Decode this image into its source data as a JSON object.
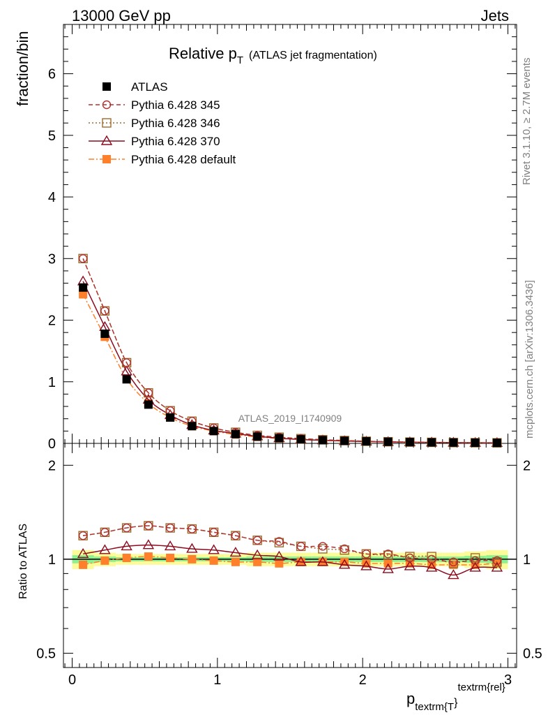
{
  "header": {
    "left": "13000 GeV pp",
    "right": "Jets"
  },
  "title": {
    "main": "Relative p",
    "sub": "T",
    "suffix": "(ATLAS jet fragmentation)"
  },
  "analysis_label": "ATLAS_2019_I1740909",
  "side_labels": {
    "rivet": "Rivet 3.1.10, ≥ 2.7M events",
    "mcplots": "mcplots.cern.ch [arXiv:1306.3436]"
  },
  "axes": {
    "ylabel_top": "fraction/bin",
    "ylabel_bottom": "Ratio to ATLAS",
    "xlabel_main": "p",
    "xlabel_sub": "textrm{T",
    "xlabel_brace": "}",
    "xlabel_sup": "textrm{rel",
    "xlabel_sup_brace": "}"
  },
  "legend": [
    {
      "name": "ATLAS",
      "color": "#000000",
      "marker": "filled-square",
      "line": "none"
    },
    {
      "name": "Pythia 6.428 345",
      "color": "#b03030",
      "marker": "open-circle",
      "line": "dashed"
    },
    {
      "name": "Pythia 6.428 346",
      "color": "#9c6b2c",
      "marker": "open-square",
      "line": "dotted"
    },
    {
      "name": "Pythia 6.428 370",
      "color": "#8b0a1e",
      "marker": "open-triangle",
      "line": "solid"
    },
    {
      "name": "Pythia 6.428 default",
      "color": "#ff7f2a",
      "marker": "filled-square",
      "line": "dashdot"
    }
  ],
  "chart_data": {
    "type": "scatter",
    "x": [
      0.075,
      0.225,
      0.375,
      0.525,
      0.675,
      0.825,
      0.975,
      1.125,
      1.275,
      1.425,
      1.575,
      1.725,
      1.875,
      2.025,
      2.175,
      2.325,
      2.475,
      2.625,
      2.775,
      2.925
    ],
    "xlim": [
      -0.06,
      3.06
    ],
    "xticks": [
      0,
      1,
      2,
      3
    ],
    "top_panel": {
      "ylabel": "fraction/bin",
      "ylim": [
        0,
        6.8
      ],
      "yticks": [
        0,
        1,
        2,
        3,
        4,
        5,
        6
      ],
      "series": [
        {
          "name": "ATLAS",
          "values": [
            2.53,
            1.78,
            1.04,
            0.63,
            0.42,
            0.28,
            0.2,
            0.15,
            0.11,
            0.085,
            0.066,
            0.052,
            0.041,
            0.033,
            0.026,
            0.021,
            0.017,
            0.014,
            0.011,
            0.009
          ]
        },
        {
          "name": "Pythia 6.428 345",
          "values": [
            3.0,
            2.15,
            1.31,
            0.82,
            0.53,
            0.36,
            0.25,
            0.18,
            0.13,
            0.1,
            0.077,
            0.06,
            0.047,
            0.035,
            0.028,
            0.022,
            0.017,
            0.014,
            0.011,
            0.009
          ]
        },
        {
          "name": "Pythia 6.428 346",
          "values": [
            3.0,
            2.15,
            1.31,
            0.82,
            0.53,
            0.36,
            0.25,
            0.18,
            0.13,
            0.1,
            0.077,
            0.059,
            0.046,
            0.035,
            0.027,
            0.021,
            0.017,
            0.013,
            0.011,
            0.009
          ]
        },
        {
          "name": "Pythia 6.428 370",
          "values": [
            2.63,
            1.89,
            1.17,
            0.71,
            0.46,
            0.3,
            0.21,
            0.16,
            0.115,
            0.085,
            0.063,
            0.05,
            0.038,
            0.03,
            0.023,
            0.019,
            0.015,
            0.012,
            0.01,
            0.008
          ]
        },
        {
          "name": "Pythia 6.428 default",
          "values": [
            2.42,
            1.73,
            1.05,
            0.65,
            0.42,
            0.28,
            0.2,
            0.145,
            0.105,
            0.08,
            0.064,
            0.051,
            0.04,
            0.032,
            0.025,
            0.02,
            0.016,
            0.013,
            0.01,
            0.008
          ]
        }
      ]
    },
    "ratio_panel": {
      "ylabel": "Ratio to ATLAS",
      "scale": "log",
      "ylim": [
        0.45,
        2.35
      ],
      "yticks": [
        0.5,
        1,
        2
      ],
      "series": [
        {
          "name": "Pythia 6.428 345",
          "values": [
            1.19,
            1.22,
            1.26,
            1.28,
            1.26,
            1.25,
            1.22,
            1.19,
            1.15,
            1.14,
            1.1,
            1.1,
            1.08,
            1.04,
            1.04,
            1.01,
            1.0,
            0.98,
            0.99,
            0.99
          ]
        },
        {
          "name": "Pythia 6.428 346",
          "values": [
            1.19,
            1.22,
            1.26,
            1.28,
            1.26,
            1.25,
            1.22,
            1.19,
            1.15,
            1.13,
            1.1,
            1.08,
            1.07,
            1.04,
            1.03,
            1.02,
            1.02,
            0.97,
            1.01,
            0.98
          ]
        },
        {
          "name": "Pythia 6.428 370",
          "values": [
            1.04,
            1.07,
            1.1,
            1.11,
            1.1,
            1.08,
            1.07,
            1.05,
            1.03,
            1.02,
            0.98,
            0.98,
            0.96,
            0.95,
            0.93,
            0.95,
            0.94,
            0.89,
            0.94,
            0.94
          ]
        },
        {
          "name": "Pythia 6.428 default",
          "values": [
            0.96,
            0.99,
            1.01,
            1.02,
            1.01,
            1.0,
            0.99,
            0.98,
            0.98,
            0.97,
            0.98,
            0.98,
            0.98,
            0.97,
            0.97,
            0.97,
            0.96,
            0.96,
            0.96,
            0.97
          ]
        }
      ],
      "yellow_band": {
        "lo": [
          0.93,
          0.95,
          0.96,
          0.96,
          0.96,
          0.96,
          0.96,
          0.96,
          0.95,
          0.95,
          0.95,
          0.95,
          0.95,
          0.95,
          0.95,
          0.95,
          0.95,
          0.95,
          0.94,
          0.93
        ],
        "hi": [
          1.07,
          1.05,
          1.04,
          1.04,
          1.04,
          1.04,
          1.04,
          1.04,
          1.05,
          1.05,
          1.05,
          1.05,
          1.05,
          1.05,
          1.05,
          1.05,
          1.05,
          1.05,
          1.06,
          1.07
        ]
      },
      "green_band": {
        "lo": [
          0.97,
          0.98,
          0.985,
          0.985,
          0.985,
          0.985,
          0.985,
          0.985,
          0.98,
          0.98,
          0.98,
          0.98,
          0.98,
          0.98,
          0.98,
          0.98,
          0.98,
          0.98,
          0.975,
          0.97
        ],
        "hi": [
          1.03,
          1.02,
          1.015,
          1.015,
          1.015,
          1.015,
          1.015,
          1.015,
          1.02,
          1.02,
          1.02,
          1.02,
          1.02,
          1.02,
          1.02,
          1.02,
          1.02,
          1.02,
          1.025,
          1.03
        ]
      },
      "band_colors": {
        "yellow": "#fbfb9a",
        "green": "#8ff08f"
      }
    }
  }
}
